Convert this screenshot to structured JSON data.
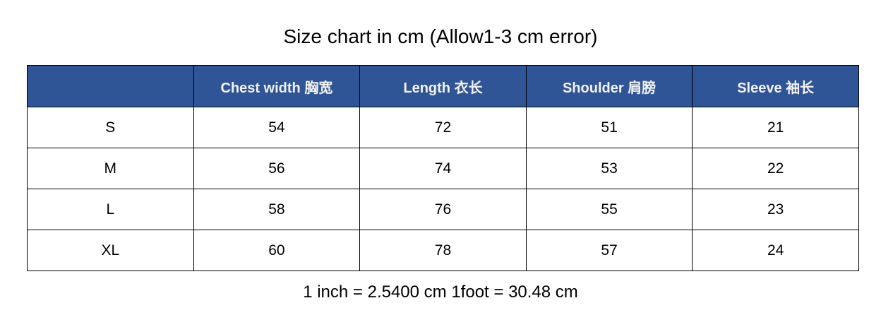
{
  "title": "Size chart in cm (Allow1-3 cm error)",
  "header_color": "#2F5597",
  "columns": [
    "",
    "Chest width  胸宽",
    "Length  衣长",
    "Shoulder  肩膀",
    "Sleeve  袖长"
  ],
  "rows": [
    [
      "S",
      "54",
      "72",
      "51",
      "21"
    ],
    [
      "M",
      "56",
      "74",
      "53",
      "22"
    ],
    [
      "L",
      "58",
      "76",
      "55",
      "23"
    ],
    [
      "XL",
      "60",
      "78",
      "57",
      "24"
    ]
  ],
  "footer": "1 inch = 2.5400 cm 1foot = 30.48 cm"
}
